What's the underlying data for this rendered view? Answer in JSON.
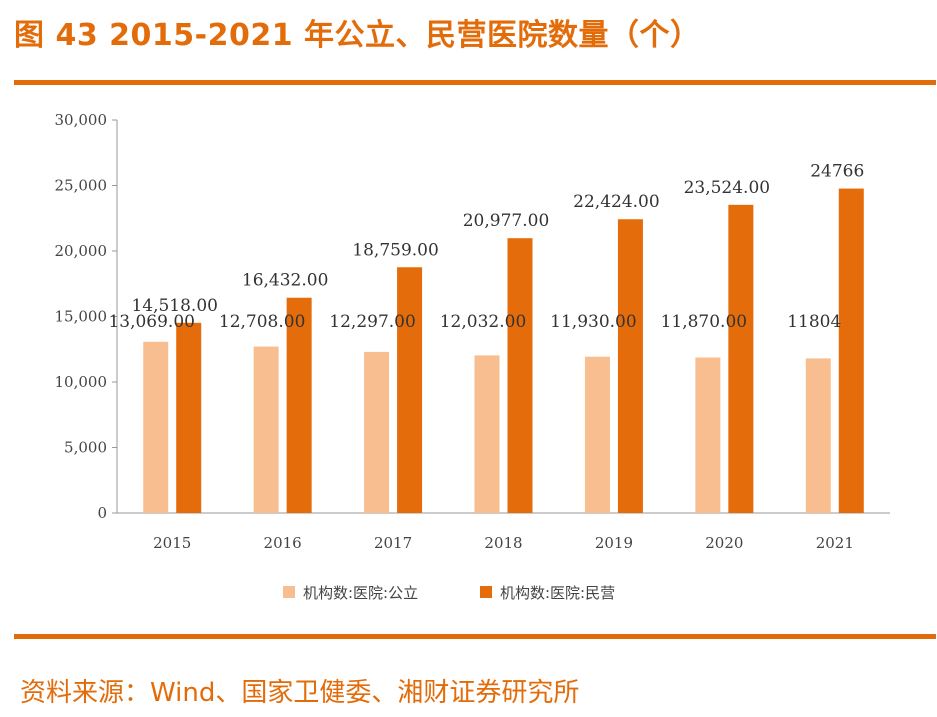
{
  "header": {
    "title": "图 43 2015-2021 年公立、民营医院数量（个）"
  },
  "footer": {
    "source": "资料来源：Wind、国家卫健委、湘财证券研究所"
  },
  "colors": {
    "accent": "#e36c0a",
    "public": "#f9be8f",
    "private": "#e46c0a"
  },
  "chart_data": {
    "type": "bar",
    "title": "图 43 2015-2021 年公立、民营医院数量（个）",
    "categories": [
      "2015",
      "2016",
      "2017",
      "2018",
      "2019",
      "2020",
      "2021"
    ],
    "series": [
      {
        "name": "机构数:医院:公立",
        "values": [
          13069,
          12708,
          12297,
          12032,
          11930,
          11870,
          11804
        ],
        "labels": [
          "13,069.00",
          "12,708.00",
          "12,297.00",
          "12,032.00",
          "11,930.00",
          "11,870.00",
          "11804"
        ]
      },
      {
        "name": "机构数:医院:民营",
        "values": [
          14518,
          16432,
          18759,
          20977,
          22424,
          23524,
          24766
        ],
        "labels": [
          "14,518.00",
          "16,432.00",
          "18,759.00",
          "20,977.00",
          "22,424.00",
          "23,524.00",
          "24766"
        ]
      }
    ],
    "ylim": [
      0,
      30000
    ],
    "yticks": [
      "0",
      "5,000",
      "10,000",
      "15,000",
      "20,000",
      "25,000",
      "30,000"
    ],
    "xlabel": "",
    "ylabel": "",
    "legend": "bottom",
    "grid": false
  }
}
